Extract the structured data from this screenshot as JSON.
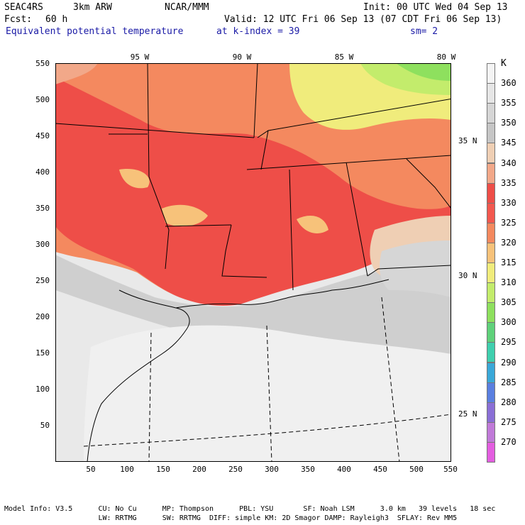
{
  "header": {
    "model": "SEAC4RS",
    "resolution": "3km ARW",
    "org": "NCAR/MMM",
    "init": "Init: 00 UTC Wed 04 Sep 13",
    "fcst_label": "Fcst:",
    "fcst_value": "60 h",
    "valid": "Valid: 12 UTC Fri 06 Sep 13 (07 CDT Fri 06 Sep 13)",
    "field": "Equivalent potential temperature",
    "level": "at k-index =  39",
    "smooth": "sm= 2"
  },
  "map": {
    "lon_labels": [
      "95 W",
      "90 W",
      "85 W",
      "80 W"
    ],
    "lat_labels": [
      "35 N",
      "30 N",
      "25 N"
    ],
    "x_ticks": [
      "50",
      "100",
      "150",
      "200",
      "250",
      "300",
      "350",
      "400",
      "450",
      "500",
      "550"
    ],
    "y_ticks": [
      "550",
      "500",
      "450",
      "400",
      "350",
      "300",
      "250",
      "200",
      "150",
      "100",
      "50"
    ],
    "grid_range": [
      0,
      550
    ]
  },
  "colorbar": {
    "unit": "K",
    "levels": [
      {
        "label": "360",
        "color": "#f4f4f4"
      },
      {
        "label": "355",
        "color": "#e6e6e6"
      },
      {
        "label": "350",
        "color": "#d6d6d6"
      },
      {
        "label": "345",
        "color": "#c6c6c6"
      },
      {
        "label": "340",
        "color": "#efcfb4"
      },
      {
        "label": "335",
        "color": "#f2a889"
      },
      {
        "label": "330",
        "color": "#ee4e48"
      },
      {
        "label": "325",
        "color": "#f2584f"
      },
      {
        "label": "320",
        "color": "#f4895f"
      },
      {
        "label": "315",
        "color": "#f7c27a"
      },
      {
        "label": "310",
        "color": "#f0ec7c"
      },
      {
        "label": "305",
        "color": "#c3ec6c"
      },
      {
        "label": "300",
        "color": "#8ee05e"
      },
      {
        "label": "295",
        "color": "#5fd17a"
      },
      {
        "label": "290",
        "color": "#3fcfae"
      },
      {
        "label": "285",
        "color": "#3aa8d8"
      },
      {
        "label": "280",
        "color": "#5a7fe0"
      },
      {
        "label": "275",
        "color": "#8a6fd6"
      },
      {
        "label": "270",
        "color": "#c07ad8"
      },
      {
        "label": "",
        "color": "#e35ee0"
      }
    ]
  },
  "footer": {
    "line1": "Model Info: V3.5      CU: No Cu      MP: Thompson      PBL: YSU       SF: Noah LSM      3.0 km   39 levels   18 sec",
    "line2": "                      LW: RRTMG      SW: RRTMG  DIFF: simple KM: 2D Smagor DAMP: Rayleigh3  SFLAY: Rev MM5"
  }
}
